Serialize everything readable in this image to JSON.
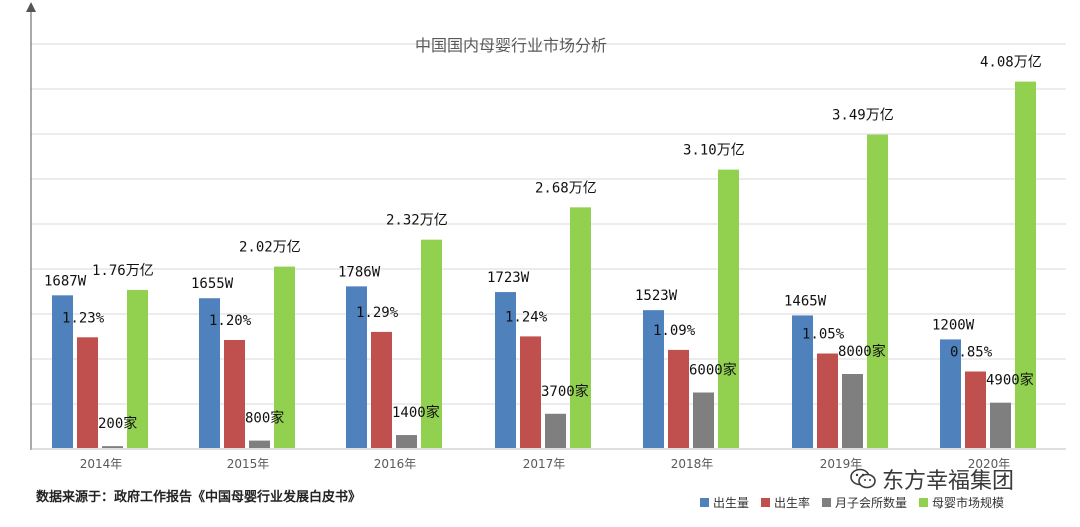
{
  "chart_data": {
    "type": "bar",
    "title": "中国国内母婴行业市场分析",
    "categories": [
      "2014年",
      "2015年",
      "2016年",
      "2017年",
      "2018年",
      "2019年",
      "2020年"
    ],
    "series": [
      {
        "name": "出生量",
        "color": "#4f81bd",
        "values": [
          1687,
          1655,
          1786,
          1723,
          1523,
          1465,
          1200
        ],
        "labels": [
          "1687W",
          "1655W",
          "1786W",
          "1723W",
          "1523W",
          "1465W",
          "1200W"
        ]
      },
      {
        "name": "出生率",
        "color": "#c0504d",
        "values": [
          1.23,
          1.2,
          1.29,
          1.24,
          1.09,
          1.05,
          0.85
        ],
        "labels": [
          "1.23%",
          "1.20%",
          "1.29%",
          "1.24%",
          "1.09%",
          "1.05%",
          "0.85%"
        ]
      },
      {
        "name": "月子会所数量",
        "color": "#7f7f7f",
        "values": [
          200,
          800,
          1400,
          3700,
          6000,
          8000,
          4900
        ],
        "labels": [
          "200家",
          "800家",
          "1400家",
          "3700家",
          "6000家",
          "8000家",
          "4900家"
        ]
      },
      {
        "name": "母婴市场规模",
        "color": "#92d050",
        "values": [
          1.76,
          2.02,
          2.32,
          2.68,
          3.1,
          3.49,
          4.08
        ],
        "labels": [
          "1.76万亿",
          "2.02万亿",
          "2.32万亿",
          "2.68万亿",
          "3.10万亿",
          "3.49万亿",
          "4.08万亿"
        ]
      }
    ],
    "xlabel": "",
    "ylabel": "",
    "grid": true,
    "legend": "bottom-right"
  },
  "source_note": "数据来源于：政府工作报告《中国母婴行业发展白皮书》",
  "watermark": {
    "text": "东方幸福集团",
    "icon": "wechat-icon"
  }
}
